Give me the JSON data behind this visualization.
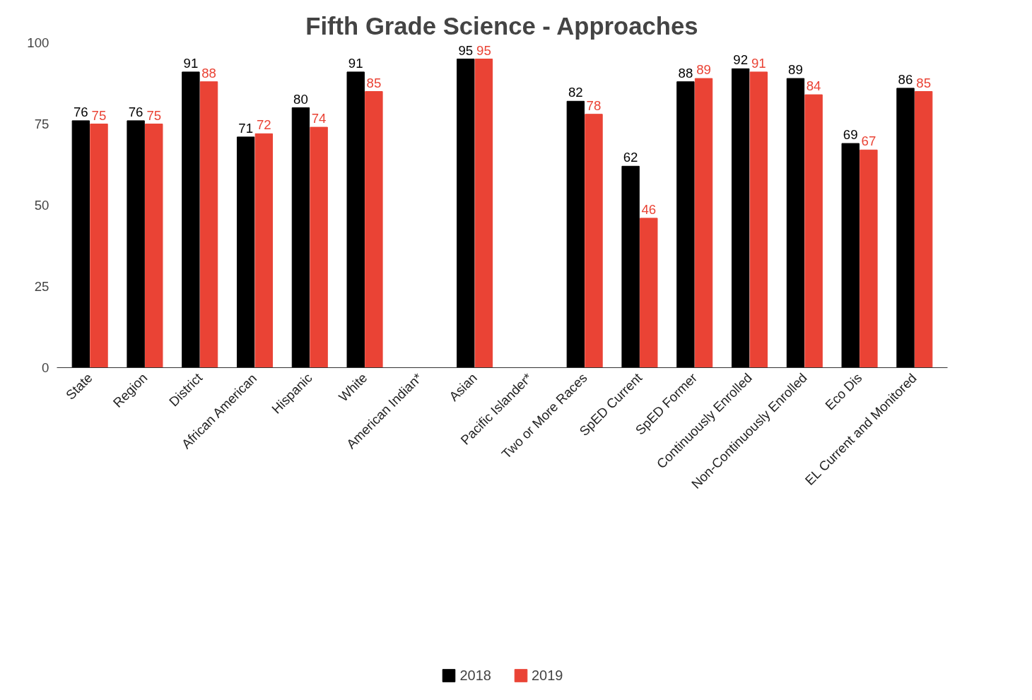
{
  "chart_data": {
    "type": "bar",
    "title": "Fifth Grade Science - Approaches",
    "categories": [
      "State",
      "Region",
      "District",
      "African American",
      "Hispanic",
      "White",
      "American Indian*",
      "Asian",
      "Pacific Islander*",
      "Two or More Races",
      "SpED Current",
      "SpED Former",
      "Continuously Enrolled",
      "Non-Continuously Enrolled",
      "Eco Dis",
      "EL Current and Monitored"
    ],
    "series": [
      {
        "name": "2018",
        "color": "#000000",
        "values": [
          76,
          76,
          91,
          71,
          80,
          91,
          null,
          95,
          null,
          82,
          62,
          88,
          92,
          89,
          69,
          86
        ]
      },
      {
        "name": "2019",
        "color": "#ea4335",
        "values": [
          75,
          75,
          88,
          72,
          74,
          85,
          null,
          95,
          null,
          78,
          46,
          89,
          91,
          84,
          67,
          85
        ]
      }
    ],
    "ylim": [
      0,
      100
    ],
    "yticks": [
      0,
      25,
      50,
      75,
      100
    ],
    "grid": false,
    "legend": "bottom",
    "data_labels": true
  }
}
